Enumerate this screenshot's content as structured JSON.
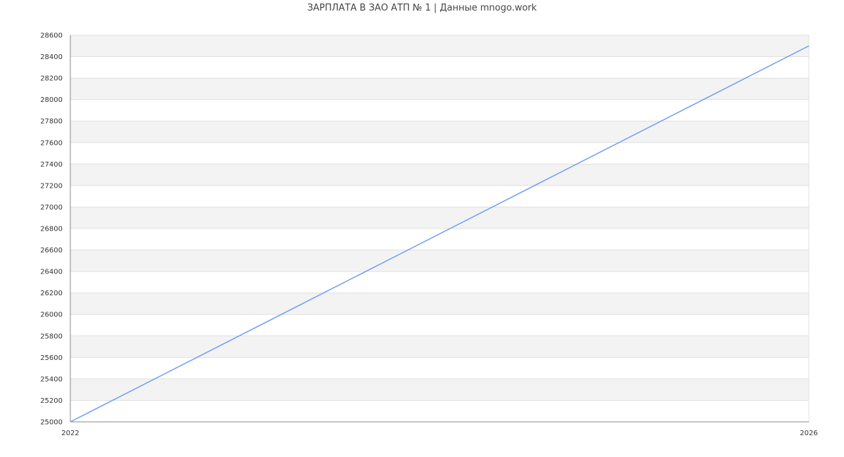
{
  "chart_data": {
    "type": "line",
    "title": "ЗАРПЛАТА В ЗАО АТП № 1 | Данные mnogo.work",
    "xlabel": "",
    "ylabel": "",
    "x": [
      2022,
      2026
    ],
    "series": [
      {
        "values": [
          25000,
          28500
        ]
      }
    ],
    "xlim": [
      2022,
      2026
    ],
    "ylim": [
      25000,
      28600
    ],
    "x_ticks": [
      "2022",
      "2026"
    ],
    "y_ticks": [
      "25000",
      "25200",
      "25400",
      "25600",
      "25800",
      "26000",
      "26200",
      "26400",
      "26600",
      "26800",
      "27000",
      "27200",
      "27400",
      "27600",
      "27800",
      "28000",
      "28200",
      "28400",
      "28600"
    ],
    "grid": true,
    "colors": {
      "line": "#6f9ef5",
      "band": "#f3f3f3",
      "grid": "#e0e0e0",
      "axis": "#888888"
    }
  }
}
